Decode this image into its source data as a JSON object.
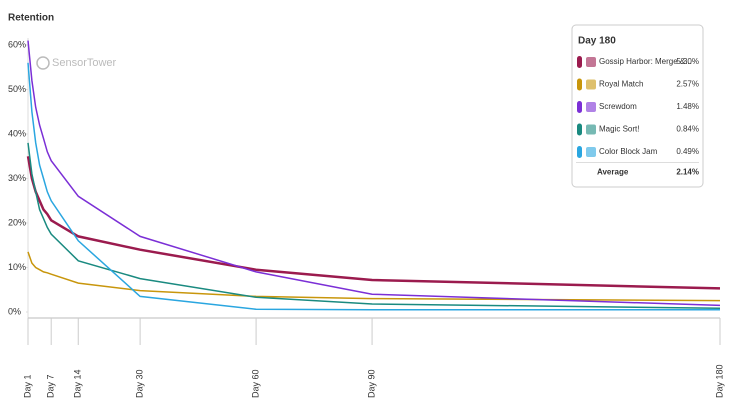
{
  "chart_data": {
    "type": "line",
    "title": "Retention",
    "watermark": "SensorTower",
    "x": [
      1,
      2,
      3,
      4,
      5,
      6,
      7,
      14,
      30,
      60,
      90,
      180
    ],
    "xlim": [
      1,
      180
    ],
    "xticks": [
      {
        "value": 1,
        "label": "Day 1"
      },
      {
        "value": 7,
        "label": "Day 7"
      },
      {
        "value": 14,
        "label": "Day 14"
      },
      {
        "value": 30,
        "label": "Day 30"
      },
      {
        "value": 60,
        "label": "Day 60"
      },
      {
        "value": 90,
        "label": "Day 90"
      },
      {
        "value": 180,
        "label": "Day 180"
      }
    ],
    "ylim": [
      0,
      60
    ],
    "yticks": [
      {
        "value": 0,
        "label": "0%"
      },
      {
        "value": 10,
        "label": "10%"
      },
      {
        "value": 20,
        "label": "20%"
      },
      {
        "value": 30,
        "label": "30%"
      },
      {
        "value": 40,
        "label": "40%"
      },
      {
        "value": 50,
        "label": "50%"
      },
      {
        "value": 60,
        "label": "60%"
      }
    ],
    "grid": false,
    "legend": "top-right",
    "series": [
      {
        "name": "Gossip Harbor: Merge &...",
        "color": "#9b1b4e",
        "values": [
          35,
          30,
          27,
          25,
          23,
          22,
          20.6,
          17,
          14,
          9.5,
          7.2,
          5.3
        ],
        "value_labels": [
          null,
          null,
          null,
          null,
          null,
          null,
          null,
          null,
          null,
          null,
          null,
          "5.30%"
        ]
      },
      {
        "name": "Royal Match",
        "color": "#c8960c",
        "values": [
          13.5,
          11,
          10,
          9.5,
          9,
          8.8,
          8.5,
          6.5,
          4.8,
          3.5,
          3.0,
          2.57
        ],
        "value_labels": [
          null,
          null,
          null,
          null,
          null,
          null,
          null,
          null,
          null,
          null,
          null,
          "2.57%"
        ]
      },
      {
        "name": "Screwdom",
        "color": "#7b2fd6",
        "values": [
          61,
          52,
          46,
          42,
          39,
          36,
          34,
          26,
          17,
          9,
          4,
          1.48
        ],
        "value_labels": [
          null,
          null,
          null,
          null,
          null,
          null,
          null,
          null,
          null,
          null,
          null,
          "1.48%"
        ]
      },
      {
        "name": "Magic Sort!",
        "color": "#1a8a80",
        "values": [
          38,
          31,
          27,
          23,
          21,
          19,
          17.5,
          11.5,
          7.5,
          3.3,
          1.8,
          0.84
        ],
        "value_labels": [
          null,
          null,
          null,
          null,
          null,
          null,
          null,
          null,
          null,
          null,
          null,
          "0.84%"
        ]
      },
      {
        "name": "Color Block Jam",
        "color": "#2aa6e0",
        "values": [
          56,
          45,
          38,
          33,
          30,
          27,
          25,
          16,
          3.5,
          0.6,
          0.5,
          0.49
        ],
        "value_labels": [
          null,
          null,
          null,
          null,
          null,
          null,
          null,
          null,
          null,
          null,
          null,
          "0.49%"
        ]
      }
    ],
    "tooltip": {
      "title": "Day 180",
      "average_name": "Average",
      "average": {
        "value": 2.14,
        "label": "2.14%"
      }
    }
  }
}
